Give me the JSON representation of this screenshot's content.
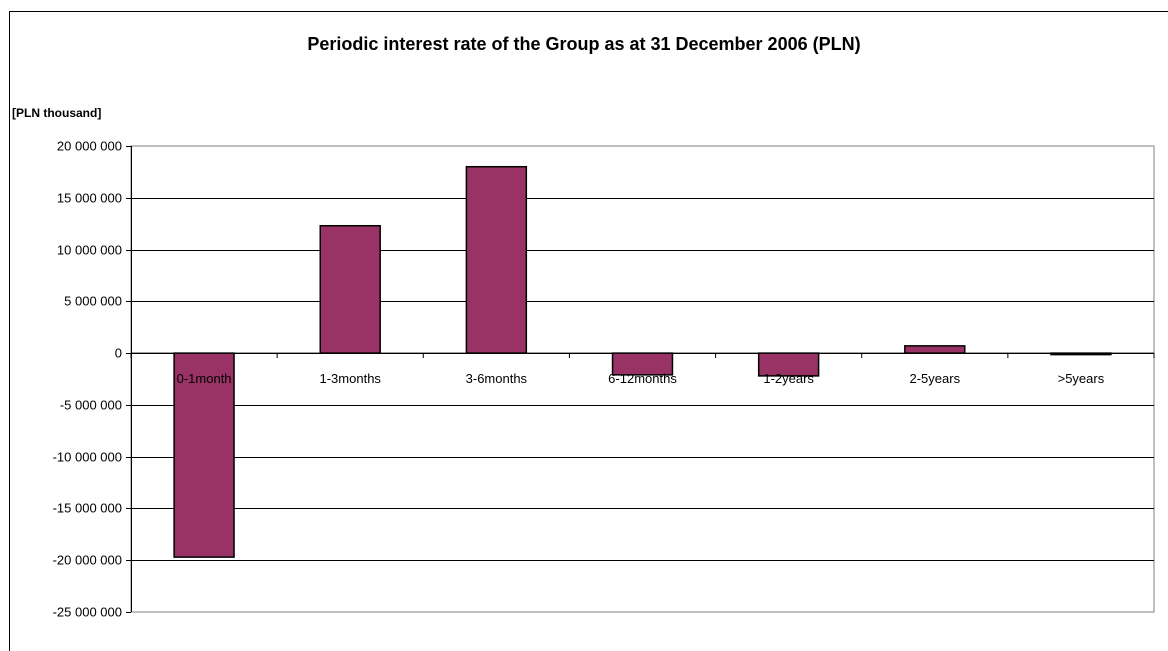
{
  "chart_data": {
    "type": "bar",
    "title": "Periodic interest rate of the Group as at 31 December 2006 (PLN)",
    "ylabel": "[PLN thousand]",
    "categories": [
      "0-1month",
      "1-3months",
      "3-6months",
      "6-12months",
      "1-2years",
      "2-5years",
      ">5years"
    ],
    "values": [
      -19700000,
      12300000,
      18000000,
      -2100000,
      -2200000,
      700000,
      -50000
    ],
    "ylim": [
      -25000000,
      20000000
    ],
    "yticks": [
      "20 000 000",
      "15 000 000",
      "10 000 000",
      "5 000 000",
      "0",
      "-5 000 000",
      "-10 000 000",
      "-15 000 000",
      "-20 000 000",
      "-25 000 000"
    ],
    "ytick_values": [
      20000000,
      15000000,
      10000000,
      5000000,
      0,
      -5000000,
      -10000000,
      -15000000,
      -20000000,
      -25000000
    ],
    "grid": true,
    "legend": "none",
    "bar_color": "#993366"
  }
}
